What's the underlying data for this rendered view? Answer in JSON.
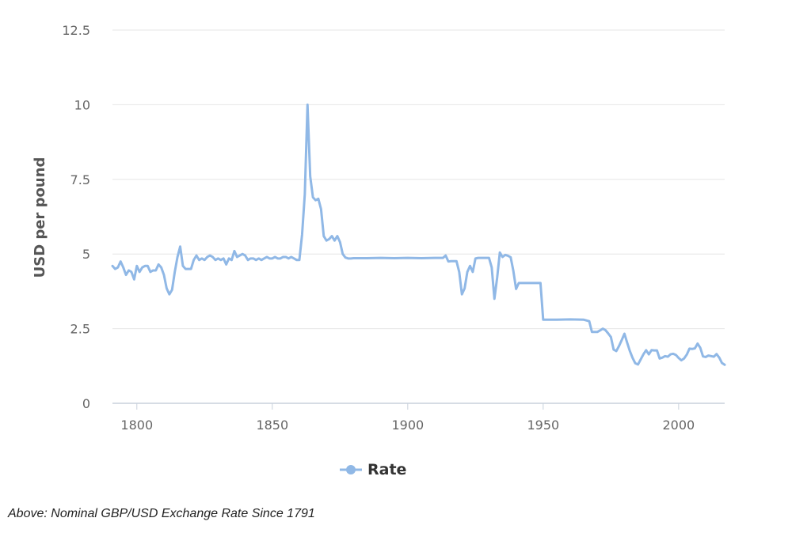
{
  "chart_data": {
    "type": "line",
    "ylabel": "USD per pound",
    "xlabel": "",
    "xlim": [
      1791,
      2017
    ],
    "ylim": [
      0,
      12.5
    ],
    "xticks": [
      1800,
      1850,
      1900,
      1950,
      2000
    ],
    "yticks": [
      0,
      2.5,
      5,
      7.5,
      10,
      12.5
    ],
    "ytick_labels": [
      "0",
      "2.5",
      "5",
      "7.5",
      "10",
      "12.5"
    ],
    "grid": "horizontal",
    "legend": "bottom-center",
    "series": [
      {
        "name": "Rate",
        "color": "#90b8e6",
        "points": [
          [
            1791,
            4.6
          ],
          [
            1792,
            4.5
          ],
          [
            1793,
            4.55
          ],
          [
            1794,
            4.75
          ],
          [
            1795,
            4.55
          ],
          [
            1796,
            4.3
          ],
          [
            1797,
            4.45
          ],
          [
            1798,
            4.4
          ],
          [
            1799,
            4.15
          ],
          [
            1800,
            4.6
          ],
          [
            1801,
            4.4
          ],
          [
            1802,
            4.55
          ],
          [
            1803,
            4.6
          ],
          [
            1804,
            4.6
          ],
          [
            1805,
            4.4
          ],
          [
            1806,
            4.45
          ],
          [
            1807,
            4.45
          ],
          [
            1808,
            4.65
          ],
          [
            1809,
            4.55
          ],
          [
            1810,
            4.3
          ],
          [
            1811,
            3.85
          ],
          [
            1812,
            3.65
          ],
          [
            1813,
            3.8
          ],
          [
            1814,
            4.4
          ],
          [
            1815,
            4.9
          ],
          [
            1816,
            5.25
          ],
          [
            1817,
            4.6
          ],
          [
            1818,
            4.5
          ],
          [
            1819,
            4.5
          ],
          [
            1820,
            4.5
          ],
          [
            1821,
            4.8
          ],
          [
            1822,
            4.95
          ],
          [
            1823,
            4.8
          ],
          [
            1824,
            4.85
          ],
          [
            1825,
            4.8
          ],
          [
            1826,
            4.9
          ],
          [
            1827,
            4.95
          ],
          [
            1828,
            4.9
          ],
          [
            1829,
            4.8
          ],
          [
            1830,
            4.85
          ],
          [
            1831,
            4.8
          ],
          [
            1832,
            4.85
          ],
          [
            1833,
            4.65
          ],
          [
            1834,
            4.85
          ],
          [
            1835,
            4.8
          ],
          [
            1836,
            5.1
          ],
          [
            1837,
            4.9
          ],
          [
            1838,
            4.95
          ],
          [
            1839,
            5.0
          ],
          [
            1840,
            4.95
          ],
          [
            1841,
            4.8
          ],
          [
            1842,
            4.85
          ],
          [
            1843,
            4.85
          ],
          [
            1844,
            4.8
          ],
          [
            1845,
            4.85
          ],
          [
            1846,
            4.8
          ],
          [
            1847,
            4.85
          ],
          [
            1848,
            4.9
          ],
          [
            1849,
            4.85
          ],
          [
            1850,
            4.85
          ],
          [
            1851,
            4.9
          ],
          [
            1852,
            4.85
          ],
          [
            1853,
            4.85
          ],
          [
            1854,
            4.9
          ],
          [
            1855,
            4.9
          ],
          [
            1856,
            4.85
          ],
          [
            1857,
            4.9
          ],
          [
            1858,
            4.85
          ],
          [
            1859,
            4.8
          ],
          [
            1860,
            4.8
          ],
          [
            1861,
            5.65
          ],
          [
            1862,
            7.0
          ],
          [
            1863,
            10.0
          ],
          [
            1864,
            7.6
          ],
          [
            1865,
            6.9
          ],
          [
            1866,
            6.8
          ],
          [
            1867,
            6.85
          ],
          [
            1868,
            6.5
          ],
          [
            1869,
            5.6
          ],
          [
            1870,
            5.45
          ],
          [
            1871,
            5.5
          ],
          [
            1872,
            5.6
          ],
          [
            1873,
            5.45
          ],
          [
            1874,
            5.6
          ],
          [
            1875,
            5.4
          ],
          [
            1876,
            5.0
          ],
          [
            1877,
            4.88
          ],
          [
            1878,
            4.85
          ],
          [
            1879,
            4.85
          ],
          [
            1880,
            4.86
          ],
          [
            1885,
            4.86
          ],
          [
            1890,
            4.87
          ],
          [
            1895,
            4.86
          ],
          [
            1900,
            4.87
          ],
          [
            1905,
            4.86
          ],
          [
            1910,
            4.87
          ],
          [
            1913,
            4.87
          ],
          [
            1914,
            4.95
          ],
          [
            1915,
            4.75
          ],
          [
            1916,
            4.76
          ],
          [
            1917,
            4.76
          ],
          [
            1918,
            4.76
          ],
          [
            1919,
            4.4
          ],
          [
            1920,
            3.65
          ],
          [
            1921,
            3.85
          ],
          [
            1922,
            4.4
          ],
          [
            1923,
            4.6
          ],
          [
            1924,
            4.4
          ],
          [
            1925,
            4.85
          ],
          [
            1926,
            4.87
          ],
          [
            1927,
            4.87
          ],
          [
            1928,
            4.87
          ],
          [
            1929,
            4.87
          ],
          [
            1930,
            4.87
          ],
          [
            1931,
            4.55
          ],
          [
            1932,
            3.5
          ],
          [
            1933,
            4.2
          ],
          [
            1934,
            5.05
          ],
          [
            1935,
            4.9
          ],
          [
            1936,
            4.97
          ],
          [
            1937,
            4.94
          ],
          [
            1938,
            4.89
          ],
          [
            1939,
            4.43
          ],
          [
            1940,
            3.83
          ],
          [
            1941,
            4.03
          ],
          [
            1942,
            4.03
          ],
          [
            1945,
            4.03
          ],
          [
            1949,
            4.03
          ],
          [
            1950,
            2.8
          ],
          [
            1955,
            2.8
          ],
          [
            1960,
            2.81
          ],
          [
            1965,
            2.8
          ],
          [
            1967,
            2.75
          ],
          [
            1968,
            2.39
          ],
          [
            1970,
            2.39
          ],
          [
            1971,
            2.44
          ],
          [
            1972,
            2.5
          ],
          [
            1973,
            2.45
          ],
          [
            1974,
            2.34
          ],
          [
            1975,
            2.22
          ],
          [
            1976,
            1.8
          ],
          [
            1977,
            1.75
          ],
          [
            1978,
            1.92
          ],
          [
            1979,
            2.12
          ],
          [
            1980,
            2.33
          ],
          [
            1981,
            2.03
          ],
          [
            1982,
            1.75
          ],
          [
            1983,
            1.52
          ],
          [
            1984,
            1.34
          ],
          [
            1985,
            1.3
          ],
          [
            1986,
            1.47
          ],
          [
            1987,
            1.64
          ],
          [
            1988,
            1.78
          ],
          [
            1989,
            1.64
          ],
          [
            1990,
            1.78
          ],
          [
            1991,
            1.77
          ],
          [
            1992,
            1.77
          ],
          [
            1993,
            1.5
          ],
          [
            1994,
            1.53
          ],
          [
            1995,
            1.58
          ],
          [
            1996,
            1.56
          ],
          [
            1997,
            1.64
          ],
          [
            1998,
            1.66
          ],
          [
            1999,
            1.62
          ],
          [
            2000,
            1.52
          ],
          [
            2001,
            1.44
          ],
          [
            2002,
            1.5
          ],
          [
            2003,
            1.63
          ],
          [
            2004,
            1.83
          ],
          [
            2005,
            1.82
          ],
          [
            2006,
            1.84
          ],
          [
            2007,
            2.0
          ],
          [
            2008,
            1.86
          ],
          [
            2009,
            1.57
          ],
          [
            2010,
            1.55
          ],
          [
            2011,
            1.6
          ],
          [
            2012,
            1.58
          ],
          [
            2013,
            1.56
          ],
          [
            2014,
            1.65
          ],
          [
            2015,
            1.53
          ],
          [
            2016,
            1.35
          ],
          [
            2017,
            1.29
          ]
        ]
      }
    ]
  },
  "caption": "Above: Nominal GBP/USD Exchange Rate Since 1791"
}
